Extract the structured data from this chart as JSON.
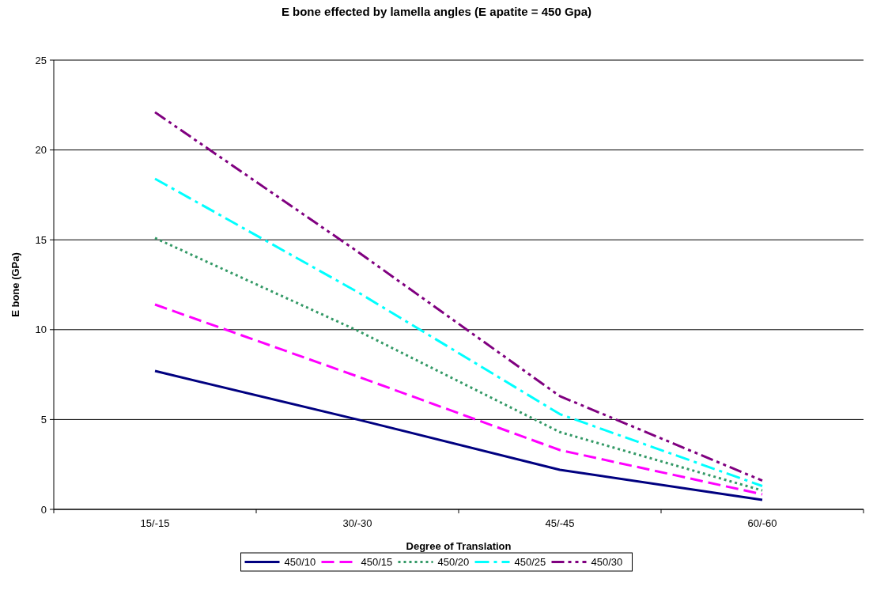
{
  "chart_data": {
    "type": "line",
    "title": "E bone effected by lamella angles (E apatite = 450 Gpa)",
    "xlabel": "Degree of Translation",
    "ylabel": "E bone (GPa)",
    "categories": [
      "15/-15",
      "30/-30",
      "45/-45",
      "60/-60"
    ],
    "series": [
      {
        "name": "450/10",
        "color": "#000080",
        "line_style": "solid",
        "values": [
          7.7,
          5.0,
          2.2,
          0.53
        ]
      },
      {
        "name": "450/15",
        "color": "#ff00ff",
        "line_style": "dashed",
        "values": [
          11.4,
          7.4,
          3.3,
          0.84
        ]
      },
      {
        "name": "450/20",
        "color": "#339966",
        "line_style": "dotted",
        "values": [
          15.1,
          9.95,
          4.3,
          1.05
        ]
      },
      {
        "name": "450/25",
        "color": "#00ffff",
        "line_style": "dashdot",
        "values": [
          18.4,
          12.1,
          5.3,
          1.3
        ]
      },
      {
        "name": "450/30",
        "color": "#800080",
        "line_style": "dashdotdot",
        "values": [
          22.1,
          14.35,
          6.3,
          1.6
        ]
      }
    ],
    "ylim": [
      0,
      25
    ],
    "yticks": [
      0,
      5,
      10,
      15,
      20,
      25
    ],
    "grid": "y",
    "legend": "bottom",
    "marker": "none"
  }
}
